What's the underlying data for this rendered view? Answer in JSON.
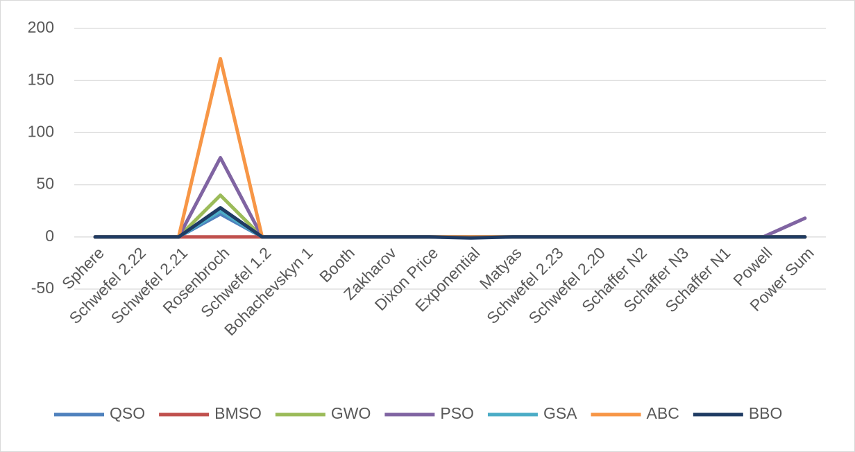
{
  "chart_data": {
    "type": "line",
    "categories": [
      "Sphere",
      "Schwefel 2.22",
      "Schwefel 2.21",
      "Rosenbroch",
      "Schwefel 1.2",
      "Bohachevskyn 1",
      "Booth",
      "Zakharov",
      "Dixon Price",
      "Exponential",
      "Matyas",
      "Schwefel 2.23",
      "Schwefel 2.20",
      "Schaffer N2",
      "Schaffer N3",
      "Schaffer N1",
      "Powell",
      "Power Sum"
    ],
    "series": [
      {
        "name": "QSO",
        "color": "#4f81bd",
        "values": [
          0,
          0,
          0,
          22,
          0,
          0,
          0,
          0,
          0,
          0,
          0,
          0,
          0,
          0,
          0,
          0,
          0,
          0
        ]
      },
      {
        "name": "BMSO",
        "color": "#c0504d",
        "values": [
          0,
          0,
          0,
          0,
          0,
          0,
          0,
          0,
          0,
          0,
          0,
          0,
          0,
          0,
          0,
          0,
          0,
          0
        ]
      },
      {
        "name": "GWO",
        "color": "#9bbb59",
        "values": [
          0,
          0,
          0,
          40,
          0,
          0,
          0,
          0,
          0,
          0,
          0,
          0,
          0,
          0,
          0,
          0,
          0,
          0
        ]
      },
      {
        "name": "PSO",
        "color": "#8064a2",
        "values": [
          0,
          0,
          0,
          76,
          0,
          0,
          0,
          0,
          0,
          0,
          0,
          0,
          0,
          0,
          0,
          0,
          0,
          18
        ]
      },
      {
        "name": "GSA",
        "color": "#4bacc6",
        "values": [
          0,
          0,
          0,
          25,
          0,
          0,
          0,
          0,
          0,
          0,
          0,
          0,
          0,
          0,
          0,
          0,
          0,
          0
        ]
      },
      {
        "name": "ABC",
        "color": "#f79646",
        "values": [
          0,
          0,
          0,
          171,
          0,
          0,
          0,
          0,
          0,
          0,
          0,
          0,
          0,
          0,
          0,
          0,
          0,
          0
        ]
      },
      {
        "name": "BBO",
        "color": "#1f3b63",
        "values": [
          0,
          0,
          0,
          28,
          0,
          0,
          0,
          0,
          0,
          -1,
          0,
          0,
          0,
          0,
          0,
          0,
          0,
          0
        ]
      }
    ],
    "ylim": [
      -50,
      200
    ],
    "yticks": [
      -50,
      0,
      50,
      100,
      150,
      200
    ],
    "grid": true,
    "legend": "bottom"
  }
}
